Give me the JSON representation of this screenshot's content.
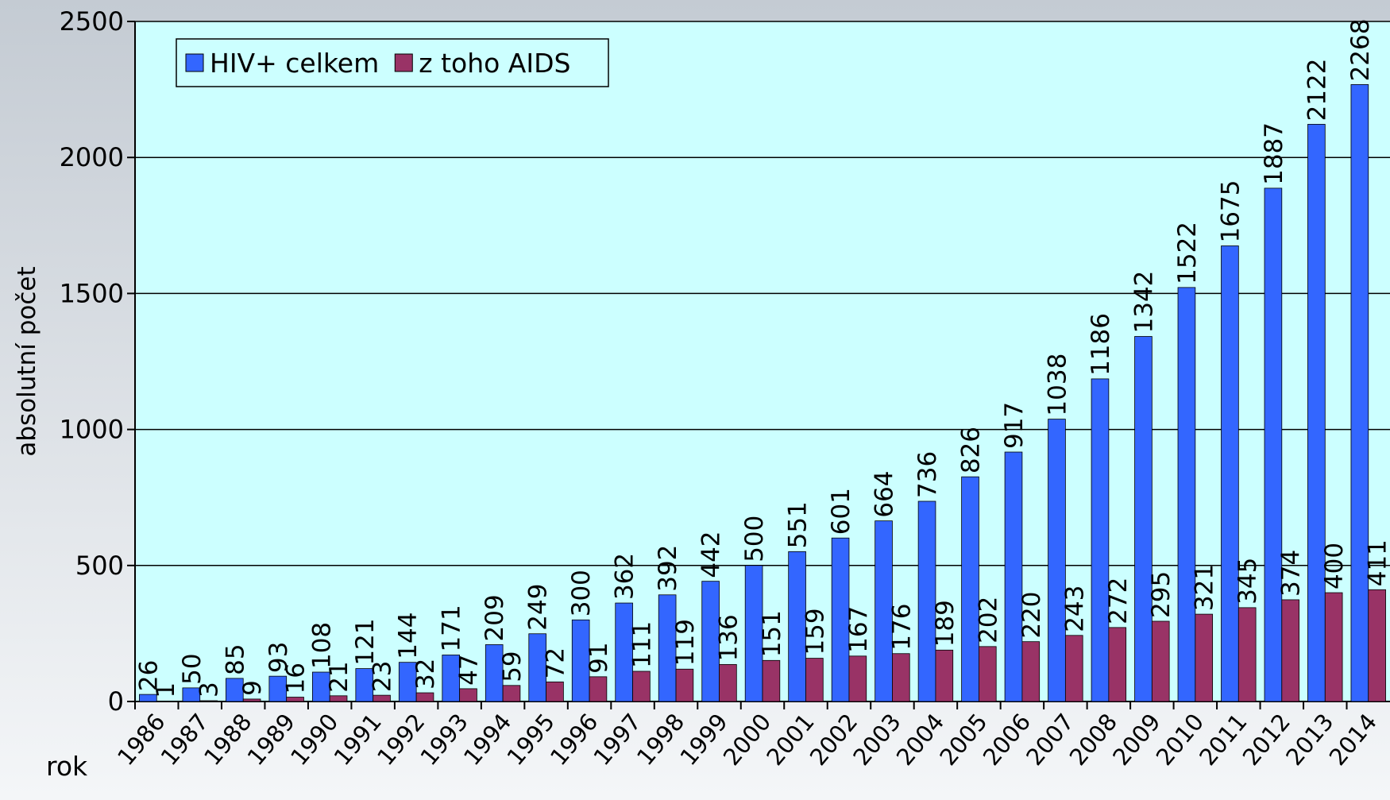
{
  "chart_data": {
    "type": "bar",
    "y_label": "absolutní počet",
    "x_label": "rok",
    "categories": [
      "1986",
      "1987",
      "1988",
      "1989",
      "1990",
      "1991",
      "1992",
      "1993",
      "1994",
      "1995",
      "1996",
      "1997",
      "1998",
      "1999",
      "2000",
      "2001",
      "2002",
      "2003",
      "2004",
      "2005",
      "2006",
      "2007",
      "2008",
      "2009",
      "2010",
      "2011",
      "2012",
      "2013",
      "2014"
    ],
    "series": [
      {
        "name": "HIV+ celkem",
        "color": "#3366ff",
        "values": [
          26,
          50,
          85,
          93,
          108,
          121,
          144,
          171,
          209,
          249,
          300,
          362,
          392,
          442,
          500,
          551,
          601,
          664,
          736,
          826,
          917,
          1038,
          1186,
          1342,
          1522,
          1675,
          1887,
          2122,
          2268
        ]
      },
      {
        "name": "z toho AIDS",
        "color": "#993366",
        "values": [
          1,
          3,
          9,
          16,
          21,
          23,
          32,
          47,
          59,
          72,
          91,
          111,
          119,
          136,
          151,
          159,
          167,
          176,
          189,
          202,
          220,
          243,
          272,
          295,
          321,
          345,
          374,
          400,
          411
        ]
      }
    ],
    "ylim": [
      0,
      2500
    ],
    "yticks": [
      0,
      500,
      1000,
      1500,
      2000,
      2500
    ],
    "grid": true,
    "legend": "top-left"
  }
}
